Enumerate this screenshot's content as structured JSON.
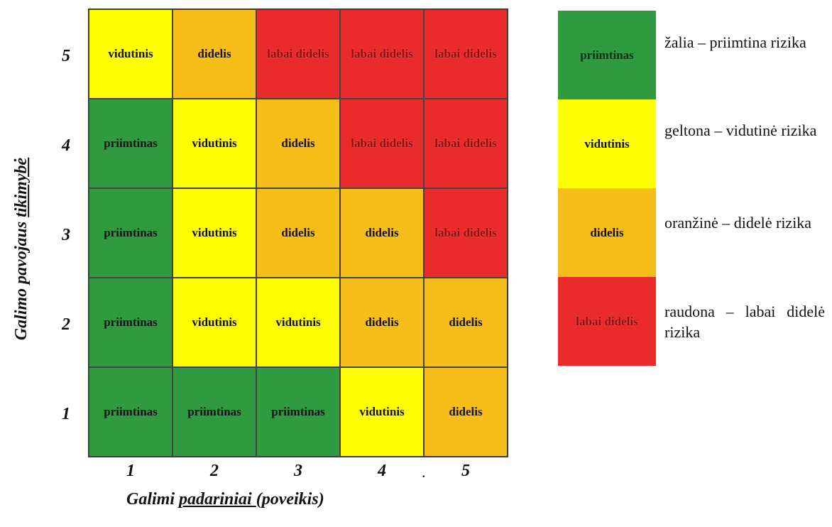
{
  "axes": {
    "y_label_part1": "Galimo pavojaus ",
    "y_label_part2": "tikimybė",
    "x_label_part1": "Galimi ",
    "x_label_part2": "padariniai ",
    "x_label_part3": "(poveikis)",
    "y_ticks": [
      "5",
      "4",
      "3",
      "2",
      "1"
    ],
    "x_ticks": [
      "1",
      "2",
      "3",
      "4",
      "5"
    ],
    "x_stray_mark": "."
  },
  "matrix": {
    "rows": [
      {
        "likelihood": "5",
        "cells": [
          {
            "text": "vidutinis",
            "level": "yellow"
          },
          {
            "text": "didelis",
            "level": "orange"
          },
          {
            "text": "labai didelis",
            "level": "red"
          },
          {
            "text": "labai didelis",
            "level": "red"
          },
          {
            "text": "labai didelis",
            "level": "red"
          }
        ]
      },
      {
        "likelihood": "4",
        "cells": [
          {
            "text": "priimtinas",
            "level": "green"
          },
          {
            "text": "vidutinis",
            "level": "yellow"
          },
          {
            "text": "didelis",
            "level": "orange"
          },
          {
            "text": "labai didelis",
            "level": "red"
          },
          {
            "text": "labai didelis",
            "level": "red"
          }
        ]
      },
      {
        "likelihood": "3",
        "cells": [
          {
            "text": "priimtinas",
            "level": "green"
          },
          {
            "text": "vidutinis",
            "level": "yellow"
          },
          {
            "text": "didelis",
            "level": "orange"
          },
          {
            "text": "didelis",
            "level": "orange"
          },
          {
            "text": "labai didelis",
            "level": "red"
          }
        ]
      },
      {
        "likelihood": "2",
        "cells": [
          {
            "text": "priimtinas",
            "level": "green"
          },
          {
            "text": "vidutinis",
            "level": "yellow"
          },
          {
            "text": "vidutinis",
            "level": "yellow"
          },
          {
            "text": "didelis",
            "level": "orange"
          },
          {
            "text": "didelis",
            "level": "orange"
          }
        ]
      },
      {
        "likelihood": "1",
        "cells": [
          {
            "text": "priimtinas",
            "level": "green"
          },
          {
            "text": "priimtinas",
            "level": "green"
          },
          {
            "text": "priimtinas",
            "level": "green"
          },
          {
            "text": "vidutinis",
            "level": "yellow"
          },
          {
            "text": "didelis",
            "level": "orange"
          }
        ]
      }
    ]
  },
  "legend": [
    {
      "swatch": "priimtinas",
      "level": "green",
      "desc": "žalia – priimtina rizika"
    },
    {
      "swatch": "vidutinis",
      "level": "yellow",
      "desc": "geltona – vidutinė rizika"
    },
    {
      "swatch": "didelis",
      "level": "orange",
      "desc": "oranžinė – didelė rizika"
    },
    {
      "swatch": "labai didelis",
      "level": "red",
      "desc": "raudona – labai didelė rizika"
    }
  ],
  "colors": {
    "green": "#2f9a40",
    "yellow": "#ffff00",
    "orange": "#f7bd18",
    "red": "#ea2b2b"
  }
}
